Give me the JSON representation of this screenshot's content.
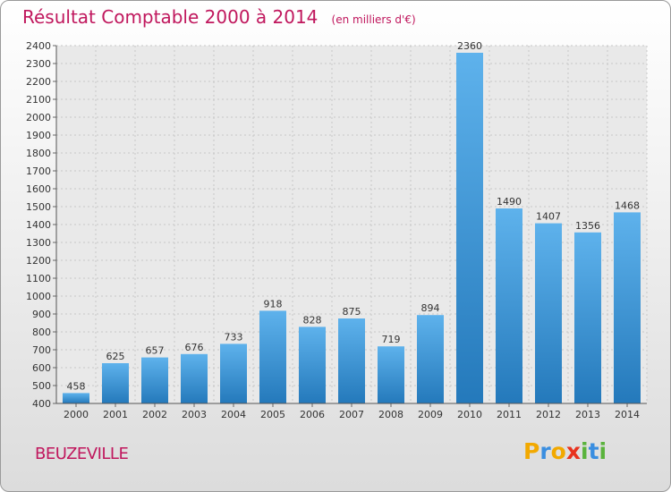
{
  "header": {
    "title": "Résultat Comptable 2000 à 2014",
    "unit": "(en milliers d'€)"
  },
  "location": "BEUZEVILLE",
  "brand": {
    "letters": [
      "P",
      "r",
      "o",
      "x",
      "i",
      "t",
      "i"
    ],
    "colors": [
      "#f2a900",
      "#3a8ee0",
      "#f2a900",
      "#e8321e",
      "#5ab33c",
      "#3a8ee0",
      "#5ab33c"
    ]
  },
  "colors": {
    "bar_light": "#5eb2ec",
    "bar_dark": "#2479bb",
    "grid": "#c8c8c8",
    "axis_text": "#333333",
    "title": "#c0175d"
  },
  "chart_data": {
    "type": "bar",
    "categories": [
      "2000",
      "2001",
      "2002",
      "2003",
      "2004",
      "2005",
      "2006",
      "2007",
      "2008",
      "2009",
      "2010",
      "2011",
      "2012",
      "2013",
      "2014"
    ],
    "values": [
      458,
      625,
      657,
      676,
      733,
      918,
      828,
      875,
      719,
      894,
      2360,
      1490,
      1407,
      1356,
      1468
    ],
    "ylim": [
      400,
      2400
    ],
    "yticks": [
      400,
      500,
      600,
      700,
      800,
      900,
      1000,
      1100,
      1200,
      1300,
      1400,
      1500,
      1600,
      1700,
      1800,
      1900,
      2000,
      2100,
      2200,
      2300,
      2400
    ],
    "grid": true,
    "data_labels": true
  }
}
